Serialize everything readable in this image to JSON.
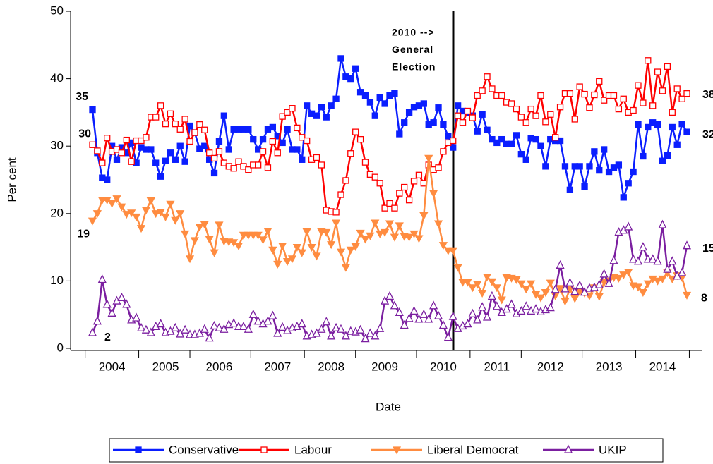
{
  "chart_data": {
    "type": "line",
    "x_label": "Date",
    "y_label": "Per cent",
    "annotation": [
      "2010 -->",
      "General",
      "Election"
    ],
    "ylim": [
      0,
      50
    ],
    "yticks": [
      0,
      10,
      20,
      30,
      40,
      50
    ],
    "grid": false,
    "legend": "bottom",
    "categories": [
      null,
      null,
      null,
      null,
      "2004",
      null,
      null,
      null,
      null,
      null,
      null,
      null,
      null,
      null,
      null,
      "2005",
      null,
      null,
      null,
      null,
      null,
      null,
      null,
      null,
      null,
      null,
      "2006",
      null,
      null,
      null,
      null,
      null,
      null,
      null,
      null,
      null,
      null,
      null,
      "2007",
      null,
      null,
      null,
      null,
      null,
      null,
      null,
      null,
      null,
      null,
      "2008",
      null,
      null,
      null,
      null,
      null,
      null,
      null,
      null,
      null,
      null,
      "2009",
      null,
      null,
      null,
      null,
      null,
      null,
      null,
      null,
      null,
      null,
      null,
      "2010",
      null,
      null,
      null,
      null,
      null,
      null,
      null,
      null,
      null,
      null,
      "2011",
      null,
      null,
      null,
      null,
      null,
      null,
      null,
      null,
      null,
      null,
      "2012",
      null,
      null,
      null,
      null,
      null,
      null,
      null,
      null,
      null,
      null,
      null,
      "2013",
      null,
      null,
      null,
      null,
      null,
      null,
      null,
      null,
      null,
      null,
      "2014",
      null,
      null,
      null,
      null,
      null
    ],
    "series": [
      {
        "name": "Conservative",
        "color": "#0a1eff",
        "marker": "square-filled",
        "values": [
          35.4,
          29,
          25.3,
          25,
          30,
          28,
          29.8,
          29,
          30.5,
          27.5,
          29.8,
          29.5,
          29.5,
          27.5,
          25.5,
          27.8,
          29,
          28,
          30,
          27.7,
          33,
          32,
          29.6,
          30,
          28,
          26,
          30.7,
          34.5,
          29.5,
          32.5,
          32.5,
          32.5,
          32.5,
          31,
          29.5,
          31,
          32.5,
          32.8,
          31.5,
          30.5,
          32.5,
          29.5,
          29.5,
          28,
          36,
          34.8,
          34.5,
          35.8,
          34.3,
          36,
          37,
          43,
          40.3,
          40,
          41.5,
          38,
          37.5,
          36.5,
          34.5,
          37.2,
          36.3,
          37.5,
          37.8,
          31.8,
          33.5,
          35,
          35.8,
          36,
          36.3,
          33.2,
          33.5,
          35.7,
          33.2,
          31.5,
          29.8,
          36,
          35.2,
          35,
          34.5,
          32.2,
          34.7,
          32.4,
          31,
          30.5,
          31,
          30.3,
          30.3,
          31.6,
          28.8,
          28,
          31.2,
          31,
          30,
          27,
          31,
          30.8,
          30.8,
          27,
          23.5,
          27,
          27,
          24,
          27,
          29.2,
          26.4,
          29.5,
          26.2,
          26.8,
          27.2,
          22.4,
          24.5,
          26.2,
          33.2,
          28.5,
          32.8,
          33.5,
          33.2,
          27.8,
          28.6,
          32.8,
          30.2,
          33.3,
          32.1
        ],
        "value_labels": [
          "35",
          null,
          null,
          null,
          null,
          null,
          null,
          null,
          null,
          null,
          null,
          null,
          null,
          null,
          null,
          null,
          null,
          null,
          null,
          null,
          null,
          null,
          null,
          null,
          null,
          null,
          null,
          null,
          null,
          null,
          null,
          null,
          null,
          null,
          null,
          null,
          null,
          null,
          null,
          null,
          null,
          null,
          null,
          null,
          null,
          null,
          null,
          null,
          null,
          null,
          null,
          null,
          null,
          null,
          null,
          null,
          null,
          null,
          null,
          null,
          null,
          null,
          null,
          null,
          null,
          null,
          null,
          null,
          null,
          null,
          null,
          null,
          null,
          null,
          null,
          null,
          null,
          null,
          null,
          null,
          null,
          null,
          null,
          null,
          null,
          null,
          null,
          null,
          null,
          null,
          null,
          null,
          null,
          null,
          null,
          null,
          null,
          null,
          null,
          null,
          null,
          null,
          null,
          null,
          null,
          null,
          null,
          null,
          null,
          null,
          null,
          null,
          null,
          null,
          null,
          null,
          null,
          null,
          null,
          null,
          null,
          null,
          "32"
        ]
      },
      {
        "name": "Labour",
        "color": "#ff0000",
        "marker": "square-open",
        "values": [
          30.2,
          29.3,
          27.5,
          31.2,
          29.2,
          29.5,
          29,
          30.9,
          27.7,
          30.8,
          30.8,
          31.3,
          34.3,
          34.3,
          36,
          33.3,
          34.8,
          33.3,
          32.5,
          34,
          30.7,
          32,
          33.2,
          32.4,
          29,
          28.2,
          29.2,
          27.5,
          27,
          26.7,
          27.7,
          27,
          26.5,
          27.2,
          27.2,
          29.2,
          26.8,
          30.7,
          29,
          34.4,
          35,
          35.6,
          32.7,
          31.3,
          30.8,
          28,
          28.3,
          27.2,
          20.5,
          20.3,
          20.2,
          22.8,
          24.9,
          28.9,
          32.1,
          31,
          27.6,
          25.8,
          25.4,
          24.5,
          20.8,
          21.5,
          20.8,
          23,
          23.9,
          22,
          24.8,
          25.7,
          24.5,
          27.2,
          26.5,
          26.8,
          29.2,
          30.5,
          30.8,
          34.5,
          33.5,
          35.2,
          34.2,
          37.5,
          38.2,
          40.3,
          38.5,
          37.5,
          37.5,
          36.5,
          36.3,
          35.5,
          34.3,
          33.5,
          35.5,
          34.5,
          37.5,
          33.6,
          34.7,
          31.3,
          35.8,
          37.8,
          37.8,
          34,
          38.8,
          37.7,
          35.7,
          37.6,
          39.6,
          36.8,
          37.5,
          37.5,
          35.5,
          37,
          35,
          35.3,
          39,
          36.4,
          42.7,
          36,
          41,
          38.2,
          41.8,
          35,
          38.5,
          37,
          37.8
        ],
        "value_labels": [
          "30",
          null,
          null,
          null,
          null,
          null,
          null,
          null,
          null,
          null,
          null,
          null,
          null,
          null,
          null,
          null,
          null,
          null,
          null,
          null,
          null,
          null,
          null,
          null,
          null,
          null,
          null,
          null,
          null,
          null,
          null,
          null,
          null,
          null,
          null,
          null,
          null,
          null,
          null,
          null,
          null,
          null,
          null,
          null,
          null,
          null,
          null,
          null,
          null,
          null,
          null,
          null,
          null,
          null,
          null,
          null,
          null,
          null,
          null,
          null,
          null,
          null,
          null,
          null,
          null,
          null,
          null,
          null,
          null,
          null,
          null,
          null,
          null,
          null,
          null,
          null,
          null,
          null,
          null,
          null,
          null,
          null,
          null,
          null,
          null,
          null,
          null,
          null,
          null,
          null,
          null,
          null,
          null,
          null,
          null,
          null,
          null,
          null,
          null,
          null,
          null,
          null,
          null,
          null,
          null,
          null,
          null,
          null,
          null,
          null,
          null,
          null,
          null,
          null,
          null,
          null,
          null,
          null,
          null,
          null,
          null,
          null,
          "38"
        ]
      },
      {
        "name": "Liberal Democrat",
        "color": "#ff8c40",
        "marker": "triangle-down-filled",
        "values": [
          18.9,
          20,
          22,
          22,
          21.5,
          22.2,
          21,
          19.9,
          20.1,
          19.5,
          17.8,
          20.5,
          21.9,
          20,
          20.2,
          19.5,
          21.4,
          19,
          20,
          17,
          13.3,
          16,
          18,
          18.4,
          16.2,
          14.2,
          18.3,
          15.9,
          15.8,
          15.7,
          15.2,
          16.8,
          16.8,
          16.8,
          16.8,
          16.1,
          17.4,
          14.6,
          12.5,
          15.2,
          12.9,
          13.3,
          15,
          14.2,
          17.3,
          15,
          13.7,
          17.3,
          17.2,
          15.4,
          18.6,
          14.3,
          12,
          14.6,
          15.1,
          17.1,
          16.2,
          16.7,
          18.6,
          17,
          17.2,
          18.5,
          16.5,
          18.2,
          16.6,
          16.5,
          17,
          16.3,
          19.7,
          28.2,
          23,
          18.5,
          15.3,
          14.5,
          14.5,
          12,
          9.8,
          9.8,
          9,
          9.5,
          8.2,
          10.6,
          9.9,
          9,
          7.2,
          10.5,
          10.4,
          10.2,
          9.6,
          8.8,
          9.6,
          8,
          7.5,
          8.3,
          9.7,
          7.8,
          8.9,
          7,
          8.8,
          7.4,
          8.4,
          8.2,
          7.8,
          9,
          7.7,
          9.8,
          10,
          10.5,
          10.4,
          10.9,
          11.3,
          9.3,
          9.1,
          8.3,
          9.6,
          10.3,
          10,
          10.3,
          11.2,
          10.3,
          10.8,
          10.5,
          7.9
        ],
        "value_labels": [
          "19",
          null,
          null,
          null,
          null,
          null,
          null,
          null,
          null,
          null,
          null,
          null,
          null,
          null,
          null,
          null,
          null,
          null,
          null,
          null,
          null,
          null,
          null,
          null,
          null,
          null,
          null,
          null,
          null,
          null,
          null,
          null,
          null,
          null,
          null,
          null,
          null,
          null,
          null,
          null,
          null,
          null,
          null,
          null,
          null,
          null,
          null,
          null,
          null,
          null,
          null,
          null,
          null,
          null,
          null,
          null,
          null,
          null,
          null,
          null,
          null,
          null,
          null,
          null,
          null,
          null,
          null,
          null,
          null,
          null,
          null,
          null,
          null,
          null,
          null,
          null,
          null,
          null,
          null,
          null,
          null,
          null,
          null,
          null,
          null,
          null,
          null,
          null,
          null,
          null,
          null,
          null,
          null,
          null,
          null,
          null,
          null,
          null,
          null,
          null,
          null,
          null,
          null,
          null,
          null,
          null,
          null,
          null,
          null,
          null,
          null,
          null,
          null,
          null,
          null,
          null,
          null,
          null,
          null,
          null,
          null,
          null,
          "8"
        ]
      },
      {
        "name": "UKIP",
        "color": "#7b1fa0",
        "marker": "triangle-up-open",
        "values": [
          2.3,
          4,
          10.2,
          6.5,
          5.2,
          7,
          7.5,
          6.5,
          4.2,
          4.5,
          3,
          2.7,
          2.3,
          3.2,
          3.6,
          2.3,
          2.5,
          3,
          2.1,
          2.7,
          2,
          2,
          2.2,
          2.8,
          1.5,
          3.3,
          3,
          2.8,
          3.5,
          3.7,
          3.2,
          3.2,
          2.8,
          5,
          4,
          3.6,
          4,
          4.8,
          2.2,
          3.1,
          2.6,
          3,
          3.2,
          3.6,
          1.8,
          2,
          2.2,
          2.8,
          3.9,
          1.8,
          3,
          2.8,
          1.8,
          2.5,
          2.4,
          2.7,
          1.4,
          2.2,
          1.8,
          2.9,
          7,
          7.7,
          6.3,
          5.3,
          3.4,
          4.4,
          5.5,
          4.3,
          5,
          4.3,
          6.3,
          4.8,
          3.4,
          1.6,
          4.7,
          2.9,
          3.3,
          3.6,
          5.1,
          4.2,
          6.1,
          4.6,
          7.7,
          6.2,
          5.3,
          5.8,
          6.5,
          5.1,
          5.5,
          6.2,
          5.5,
          5.8,
          5.4,
          5.7,
          6,
          8.7,
          12.3,
          8.8,
          9.7,
          8.4,
          9.3,
          8.3,
          8.9,
          9,
          9.4,
          11,
          9.6,
          13,
          17.2,
          17.5,
          18,
          13.2,
          12.9,
          15,
          13.2,
          13.2,
          12.9,
          18.3,
          11.7,
          12.9,
          10.7,
          11.2,
          15.2
        ],
        "value_labels": [
          "2",
          null,
          null,
          null,
          null,
          null,
          null,
          null,
          null,
          null,
          null,
          null,
          null,
          null,
          null,
          null,
          null,
          null,
          null,
          null,
          null,
          null,
          null,
          null,
          null,
          null,
          null,
          null,
          null,
          null,
          null,
          null,
          null,
          null,
          null,
          null,
          null,
          null,
          null,
          null,
          null,
          null,
          null,
          null,
          null,
          null,
          null,
          null,
          null,
          null,
          null,
          null,
          null,
          null,
          null,
          null,
          null,
          null,
          null,
          null,
          null,
          null,
          null,
          null,
          null,
          null,
          null,
          null,
          null,
          null,
          null,
          null,
          null,
          null,
          null,
          null,
          null,
          null,
          null,
          null,
          null,
          null,
          null,
          null,
          null,
          null,
          null,
          null,
          null,
          null,
          null,
          null,
          null,
          null,
          null,
          null,
          null,
          null,
          null,
          null,
          null,
          null,
          null,
          null,
          null,
          null,
          null,
          null,
          null,
          null,
          null,
          null,
          null,
          null,
          null,
          null,
          null,
          null,
          null,
          null,
          null,
          null,
          "15"
        ]
      }
    ]
  }
}
